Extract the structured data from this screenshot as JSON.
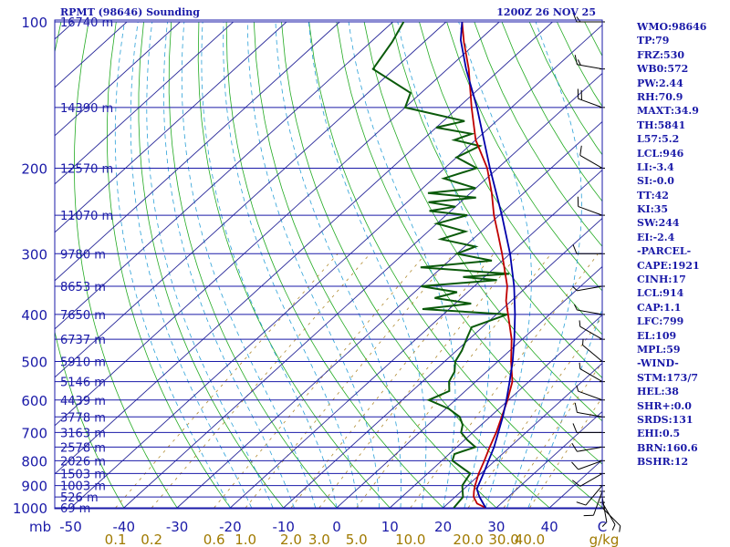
{
  "title": {
    "station": "RPMT (98646) Sounding",
    "time": "1200Z 26 NOV 25"
  },
  "indices": [
    "WMO:98646",
    "TP:79",
    "FRZ:530",
    "WB0:572",
    "PW:2.44",
    "RH:70.9",
    "MAXT:34.9",
    "TH:5841",
    "L57:5.2",
    "LCL:946",
    "LI:-3.4",
    "SI:-0.0",
    "TT:42",
    "KI:35",
    "SW:244",
    "EI:-2.4",
    "-PARCEL-",
    "CAPE:1921",
    "CINH:17",
    "LCL:914",
    "CAP:1.1",
    "LFC:799",
    "EL:109",
    "MPL:59",
    "-WIND-",
    "STM:173/7",
    "HEL:38",
    "SHR+:0.0",
    "SRDS:131",
    "EHI:0.5",
    "BRN:160.6",
    "BSHR:12"
  ],
  "colors": {
    "axis": "#1a1aa8",
    "isobar": "#1a1aa8",
    "isotherm": "#2a2a9a",
    "dry_adiabat": "#22aa22",
    "moist_adiabat": "#2aa0d8",
    "mixing_ratio": "#b08a30",
    "temperature": "#c00000",
    "dewpoint": "#0a5a0a",
    "parcel": "#0000aa",
    "wind": "#000000"
  },
  "chart_data": {
    "type": "skew-t",
    "y_axis": {
      "label": "mb",
      "scale": "log-pressure",
      "range": [
        1000,
        100
      ],
      "ticks": [
        {
          "p": 100,
          "label": "100"
        },
        {
          "p": 200,
          "label": "200"
        },
        {
          "p": 300,
          "label": "300"
        },
        {
          "p": 400,
          "label": "400"
        },
        {
          "p": 500,
          "label": "500"
        },
        {
          "p": 600,
          "label": "600"
        },
        {
          "p": 700,
          "label": "700"
        },
        {
          "p": 800,
          "label": "800"
        },
        {
          "p": 900,
          "label": "900"
        },
        {
          "p": 1000,
          "label": "1000"
        }
      ]
    },
    "x_axis": {
      "unit": "C",
      "label": "C",
      "ticks": [
        {
          "t": -50,
          "label": "-50"
        },
        {
          "t": -40,
          "label": "-40"
        },
        {
          "t": -30,
          "label": "-30"
        },
        {
          "t": -20,
          "label": "-20"
        },
        {
          "t": -10,
          "label": "-10"
        },
        {
          "t": 0,
          "label": "0"
        },
        {
          "t": 10,
          "label": "10"
        },
        {
          "t": 20,
          "label": "20"
        },
        {
          "t": 30,
          "label": "30"
        },
        {
          "t": 40,
          "label": "40"
        }
      ]
    },
    "mixing_ratio_axis": {
      "unit": "g/kg",
      "ticks": [
        {
          "w": 0.1,
          "label": "0.1"
        },
        {
          "w": 0.2,
          "label": "0.2"
        },
        {
          "w": 0.6,
          "label": "0.6"
        },
        {
          "w": 1.0,
          "label": "1.0"
        },
        {
          "w": 2.0,
          "label": "2.0"
        },
        {
          "w": 3.0,
          "label": "3.0"
        },
        {
          "w": 5.0,
          "label": "5.0"
        },
        {
          "w": 10.0,
          "label": "10.0"
        },
        {
          "w": 20.0,
          "label": "20.0"
        },
        {
          "w": 30.0,
          "label": "30.0"
        },
        {
          "w": 40.0,
          "label": "40.0"
        }
      ]
    },
    "heights": [
      {
        "p": 1000,
        "label": "69 m"
      },
      {
        "p": 950,
        "label": "526 m"
      },
      {
        "p": 900,
        "label": "1003 m"
      },
      {
        "p": 850,
        "label": "1503 m"
      },
      {
        "p": 800,
        "label": "2026 m"
      },
      {
        "p": 750,
        "label": "2578 m"
      },
      {
        "p": 700,
        "label": "3163 m"
      },
      {
        "p": 650,
        "label": "3778 m"
      },
      {
        "p": 600,
        "label": "4439 m"
      },
      {
        "p": 550,
        "label": "5146 m"
      },
      {
        "p": 500,
        "label": "5910 m"
      },
      {
        "p": 450,
        "label": "6737 m"
      },
      {
        "p": 400,
        "label": "7650 m"
      },
      {
        "p": 350,
        "label": "8653 m"
      },
      {
        "p": 300,
        "label": "9780 m"
      },
      {
        "p": 250,
        "label": "11070 m"
      },
      {
        "p": 200,
        "label": "12570 m"
      },
      {
        "p": 150,
        "label": "14390 m"
      },
      {
        "p": 100,
        "label": "16740 m"
      }
    ],
    "temperature": [
      [
        1000,
        28.0
      ],
      [
        980,
        25.5
      ],
      [
        950,
        23.5
      ],
      [
        925,
        22.4
      ],
      [
        900,
        21.4
      ],
      [
        850,
        19.6
      ],
      [
        800,
        18.0
      ],
      [
        750,
        16.2
      ],
      [
        700,
        14.4
      ],
      [
        650,
        12.2
      ],
      [
        600,
        9.8
      ],
      [
        550,
        6.9
      ],
      [
        500,
        2.5
      ],
      [
        450,
        -2.0
      ],
      [
        400,
        -7.8
      ],
      [
        375,
        -11.0
      ],
      [
        350,
        -13.8
      ],
      [
        325,
        -17.5
      ],
      [
        300,
        -21.5
      ],
      [
        275,
        -26.0
      ],
      [
        250,
        -31.0
      ],
      [
        225,
        -36.0
      ],
      [
        200,
        -42.0
      ],
      [
        175,
        -50.0
      ],
      [
        150,
        -57.5
      ],
      [
        125,
        -66.0
      ],
      [
        110,
        -72.5
      ],
      [
        100,
        -77.0
      ]
    ],
    "dewpoint": [
      [
        1000,
        22.0
      ],
      [
        950,
        21.5
      ],
      [
        900,
        19.0
      ],
      [
        850,
        18.0
      ],
      [
        800,
        12.0
      ],
      [
        775,
        11.0
      ],
      [
        750,
        13.5
      ],
      [
        725,
        10.5
      ],
      [
        700,
        7.8
      ],
      [
        675,
        6.5
      ],
      [
        650,
        4.3
      ],
      [
        625,
        0.5
      ],
      [
        600,
        -5.0
      ],
      [
        575,
        -3.0
      ],
      [
        550,
        -5.0
      ],
      [
        525,
        -6.0
      ],
      [
        500,
        -8.0
      ],
      [
        475,
        -9.0
      ],
      [
        450,
        -10.5
      ],
      [
        425,
        -12.0
      ],
      [
        400,
        -8.0
      ],
      [
        390,
        -25.0
      ],
      [
        380,
        -17.0
      ],
      [
        370,
        -25.0
      ],
      [
        360,
        -22.0
      ],
      [
        350,
        -30.0
      ],
      [
        340,
        -17.0
      ],
      [
        335,
        -24.0
      ],
      [
        330,
        -16.0
      ],
      [
        320,
        -34.0
      ],
      [
        310,
        -22.0
      ],
      [
        300,
        -30.0
      ],
      [
        290,
        -28.0
      ],
      [
        280,
        -36.0
      ],
      [
        270,
        -33.0
      ],
      [
        260,
        -40.0
      ],
      [
        250,
        -36.0
      ],
      [
        245,
        -44.0
      ],
      [
        240,
        -40.0
      ],
      [
        235,
        -46.0
      ],
      [
        230,
        -38.0
      ],
      [
        225,
        -48.0
      ],
      [
        220,
        -40.0
      ],
      [
        210,
        -48.0
      ],
      [
        200,
        -44.0
      ],
      [
        190,
        -50.0
      ],
      [
        180,
        -48.0
      ],
      [
        175,
        -54.0
      ],
      [
        170,
        -52.0
      ],
      [
        165,
        -60.0
      ],
      [
        160,
        -56.0
      ],
      [
        150,
        -70.0
      ],
      [
        140,
        -72.0
      ],
      [
        125,
        -84.0
      ],
      [
        110,
        -86.0
      ],
      [
        100,
        -88.0
      ]
    ],
    "parcel": [
      [
        1000,
        28.0
      ],
      [
        950,
        24.6
      ],
      [
        914,
        22.4
      ],
      [
        900,
        22.0
      ],
      [
        850,
        20.5
      ],
      [
        800,
        18.8
      ],
      [
        750,
        17.0
      ],
      [
        700,
        14.8
      ],
      [
        650,
        12.4
      ],
      [
        600,
        9.6
      ],
      [
        550,
        6.4
      ],
      [
        500,
        2.8
      ],
      [
        450,
        -1.5
      ],
      [
        400,
        -6.5
      ],
      [
        350,
        -12.5
      ],
      [
        300,
        -20.0
      ],
      [
        250,
        -29.5
      ],
      [
        200,
        -41.5
      ],
      [
        150,
        -56.5
      ],
      [
        125,
        -66.5
      ],
      [
        109,
        -73.5
      ],
      [
        100,
        -77.0
      ]
    ],
    "wind": [
      {
        "p": 1000,
        "dir": 135,
        "spd": 5
      },
      {
        "p": 975,
        "dir": 150,
        "spd": 5
      },
      {
        "p": 950,
        "dir": 170,
        "spd": 5
      },
      {
        "p": 925,
        "dir": 200,
        "spd": 10
      },
      {
        "p": 900,
        "dir": 220,
        "spd": 10
      },
      {
        "p": 850,
        "dir": 240,
        "spd": 10
      },
      {
        "p": 800,
        "dir": 250,
        "spd": 10
      },
      {
        "p": 750,
        "dir": 260,
        "spd": 10
      },
      {
        "p": 700,
        "dir": 270,
        "spd": 10
      },
      {
        "p": 650,
        "dir": 280,
        "spd": 10
      },
      {
        "p": 600,
        "dir": 290,
        "spd": 5
      },
      {
        "p": 550,
        "dir": 300,
        "spd": 5
      },
      {
        "p": 500,
        "dir": 310,
        "spd": 5
      },
      {
        "p": 450,
        "dir": 300,
        "spd": 5
      },
      {
        "p": 400,
        "dir": 280,
        "spd": 5
      },
      {
        "p": 350,
        "dir": 260,
        "spd": 5
      },
      {
        "p": 300,
        "dir": 270,
        "spd": 10
      },
      {
        "p": 250,
        "dir": 290,
        "spd": 10
      },
      {
        "p": 200,
        "dir": 300,
        "spd": 10
      },
      {
        "p": 150,
        "dir": 290,
        "spd": 20
      },
      {
        "p": 125,
        "dir": 280,
        "spd": 15
      },
      {
        "p": 100,
        "dir": 270,
        "spd": 15
      }
    ]
  }
}
